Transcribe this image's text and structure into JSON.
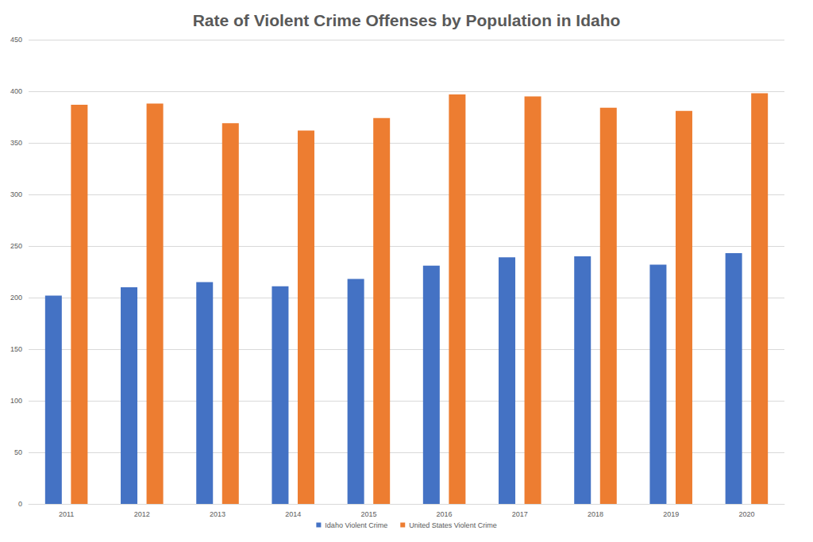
{
  "chart_data": {
    "type": "bar",
    "title": "Rate of Violent Crime Offenses by Population in Idaho",
    "categories": [
      "2011",
      "2012",
      "2013",
      "2014",
      "2015",
      "2016",
      "2017",
      "2018",
      "2019",
      "2020"
    ],
    "series": [
      {
        "name": "Idaho Violent Crime",
        "color": "#4472c4",
        "values": [
          202,
          210,
          215,
          211,
          218,
          231,
          239,
          240,
          232,
          243
        ]
      },
      {
        "name": "United States Violent Crime",
        "color": "#ed7d31",
        "values": [
          387,
          388,
          369,
          362,
          374,
          397,
          395,
          384,
          381,
          398
        ]
      }
    ],
    "ylim": [
      0,
      450
    ],
    "yticks": [
      0,
      50,
      100,
      150,
      200,
      250,
      300,
      350,
      400,
      450
    ],
    "grid": true,
    "legend": "bottom"
  }
}
